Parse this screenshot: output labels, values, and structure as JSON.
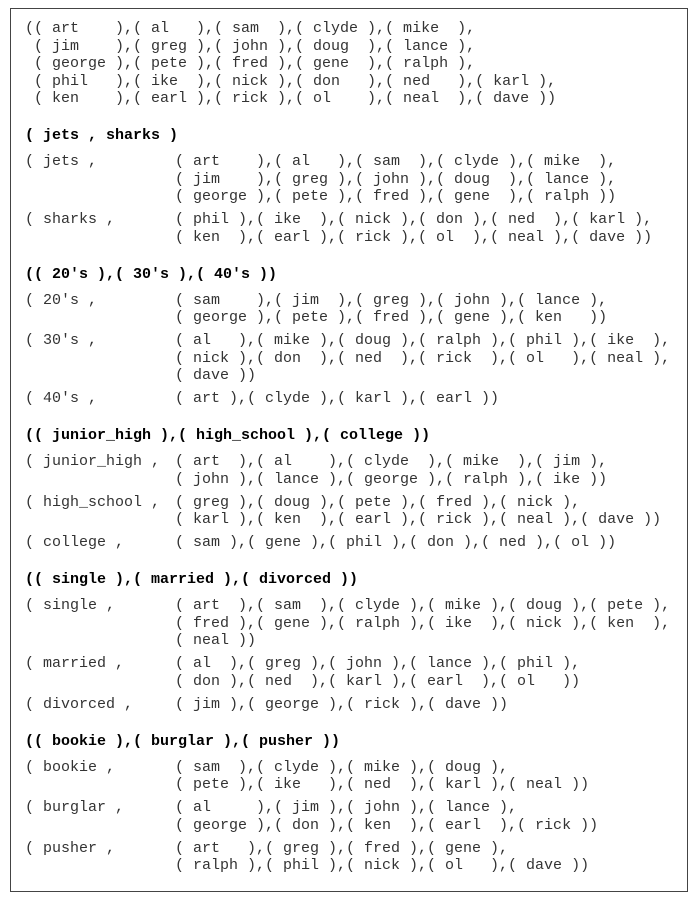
{
  "intro": [
    "(( art    ),( al   ),( sam  ),( clyde ),( mike  ),",
    " ( jim    ),( greg ),( john ),( doug  ),( lance ),",
    " ( george ),( pete ),( fred ),( gene  ),( ralph ),",
    " ( phil   ),( ike  ),( nick ),( don   ),( ned   ),( karl ),",
    " ( ken    ),( earl ),( rick ),( ol    ),( neal  ),( dave ))"
  ],
  "sections": [
    {
      "header": "( jets , sharks )",
      "groups": [
        {
          "label": "( jets ,",
          "lines": [
            "( art    ),( al   ),( sam  ),( clyde ),( mike  ),",
            "( jim    ),( greg ),( john ),( doug  ),( lance ),",
            "( george ),( pete ),( fred ),( gene  ),( ralph ))"
          ]
        },
        {
          "label": "( sharks ,",
          "lines": [
            "( phil ),( ike  ),( nick ),( don ),( ned  ),( karl ),",
            "( ken  ),( earl ),( rick ),( ol  ),( neal ),( dave ))"
          ]
        }
      ]
    },
    {
      "header": "(( 20's ),( 30's ),( 40's ))",
      "groups": [
        {
          "label": "( 20's ,",
          "lines": [
            "( sam    ),( jim  ),( greg ),( john ),( lance ),",
            "( george ),( pete ),( fred ),( gene ),( ken   ))"
          ]
        },
        {
          "label": "( 30's ,",
          "lines": [
            "( al   ),( mike ),( doug ),( ralph ),( phil ),( ike  ),",
            "( nick ),( don  ),( ned  ),( rick  ),( ol   ),( neal ),",
            "( dave ))"
          ]
        },
        {
          "label": "( 40's ,",
          "lines": [
            "( art ),( clyde ),( karl ),( earl ))"
          ]
        }
      ]
    },
    {
      "header": "(( junior_high ),( high_school ),( college ))",
      "groups": [
        {
          "label": "( junior_high ,",
          "lines": [
            "( art  ),( al    ),( clyde  ),( mike  ),( jim ),",
            "( john ),( lance ),( george ),( ralph ),( ike ))"
          ]
        },
        {
          "label": "( high_school ,",
          "lines": [
            "( greg ),( doug ),( pete ),( fred ),( nick ),",
            "( karl ),( ken  ),( earl ),( rick ),( neal ),( dave ))"
          ]
        },
        {
          "label": "( college ,",
          "lines": [
            "( sam ),( gene ),( phil ),( don ),( ned ),( ol ))"
          ]
        }
      ]
    },
    {
      "header": "(( single ),( married ),( divorced ))",
      "groups": [
        {
          "label": "( single ,",
          "lines": [
            "( art  ),( sam  ),( clyde ),( mike ),( doug ),( pete ),",
            "( fred ),( gene ),( ralph ),( ike  ),( nick ),( ken  ),",
            "( neal ))"
          ]
        },
        {
          "label": "( married ,",
          "lines": [
            "( al  ),( greg ),( john ),( lance ),( phil ),",
            "( don ),( ned  ),( karl ),( earl  ),( ol   ))"
          ]
        },
        {
          "label": "( divorced ,",
          "lines": [
            "( jim ),( george ),( rick ),( dave ))"
          ]
        }
      ]
    },
    {
      "header": "(( bookie ),( burglar ),( pusher ))",
      "groups": [
        {
          "label": "( bookie ,",
          "lines": [
            "( sam  ),( clyde ),( mike ),( doug ),",
            "( pete ),( ike   ),( ned  ),( karl ),( neal ))"
          ]
        },
        {
          "label": "( burglar ,",
          "lines": [
            "( al     ),( jim ),( john ),( lance ),",
            "( george ),( don ),( ken  ),( earl  ),( rick ))"
          ]
        },
        {
          "label": "( pusher ,",
          "lines": [
            "( art   ),( greg ),( fred ),( gene ),",
            "( ralph ),( phil ),( nick ),( ol   ),( dave ))"
          ]
        }
      ]
    }
  ]
}
